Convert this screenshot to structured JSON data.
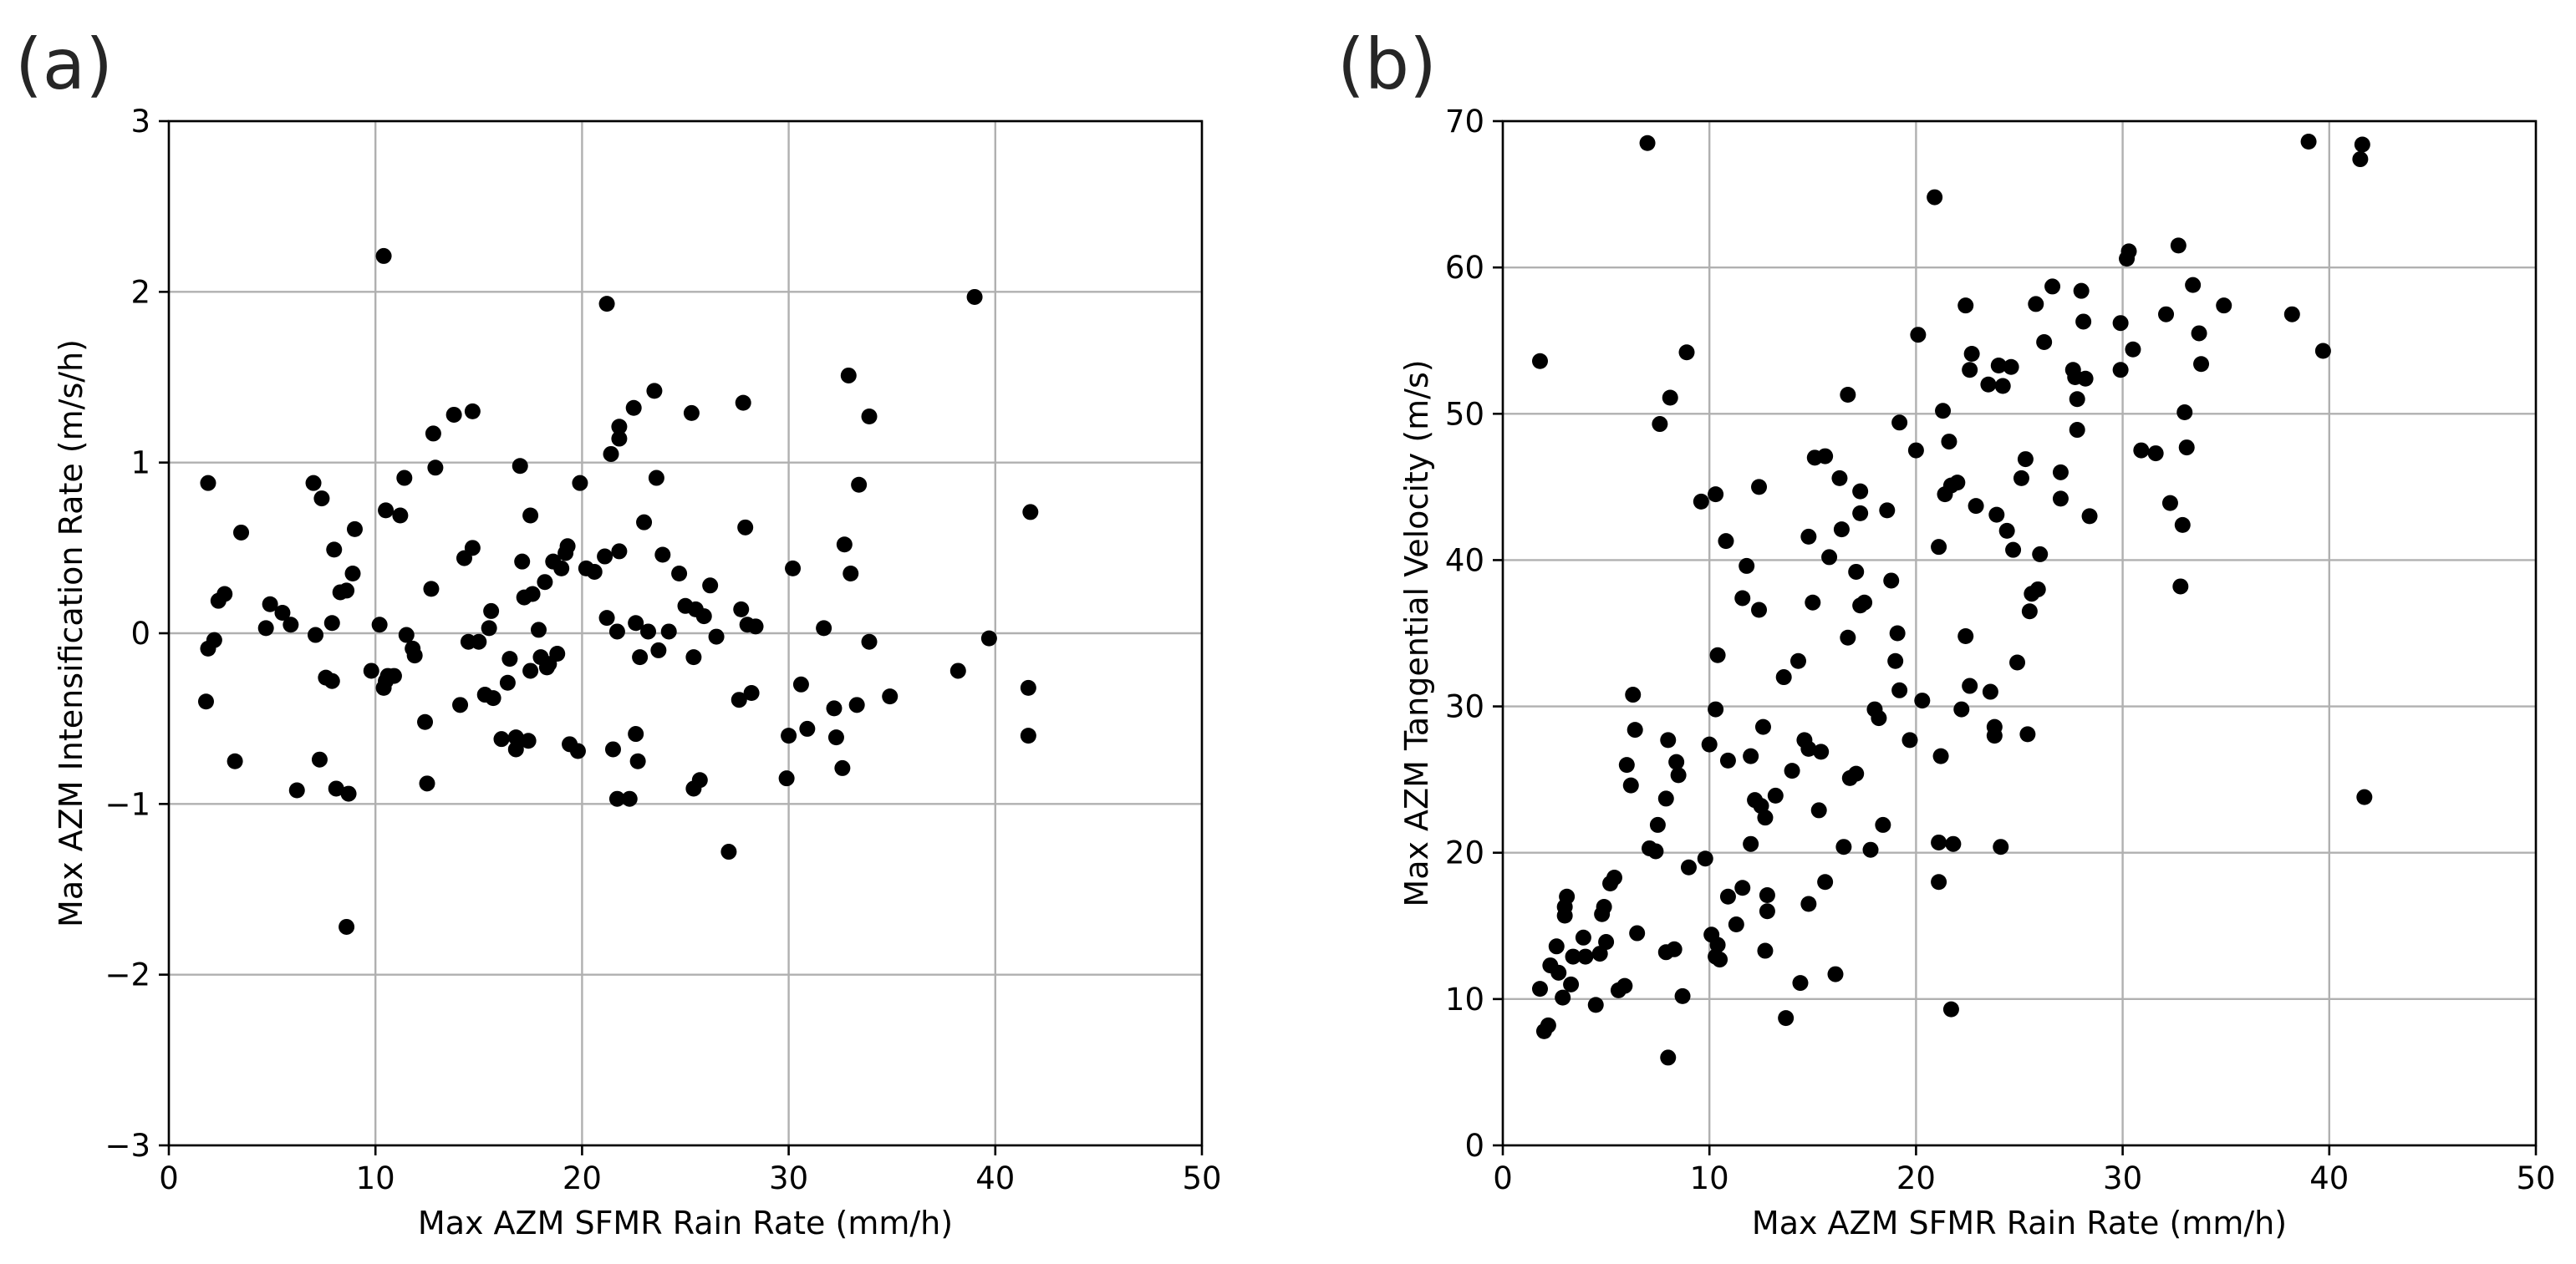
{
  "chart_data": [
    {
      "panel": "(a)",
      "type": "scatter",
      "title": "",
      "xlabel": "Max AZM SFMR Rain Rate (mm/h)",
      "ylabel": "Max AZM Intensification Rate (m/s/h)",
      "xlim": [
        0,
        50
      ],
      "ylim": [
        -3,
        3
      ],
      "xticks": [
        0,
        10,
        20,
        30,
        40,
        50
      ],
      "yticks": [
        -3,
        -2,
        -1,
        0,
        1,
        2,
        3
      ],
      "xtick_labels": [
        "0",
        "10",
        "20",
        "30",
        "40",
        "50"
      ],
      "ytick_labels": [
        "−3",
        "−2",
        "−1",
        "0",
        "1",
        "2",
        "3"
      ],
      "grid": true,
      "marker_color": "#000000",
      "points": [
        [
          1.9,
          0.88
        ],
        [
          2.7,
          0.23
        ],
        [
          1.8,
          -0.4
        ],
        [
          1.9,
          -0.09
        ],
        [
          2.2,
          -0.04
        ],
        [
          2.4,
          0.19
        ],
        [
          3.2,
          -0.75
        ],
        [
          3.5,
          0.59
        ],
        [
          4.9,
          0.17
        ],
        [
          4.7,
          0.03
        ],
        [
          5.5,
          0.12
        ],
        [
          5.9,
          0.05
        ],
        [
          6.2,
          -0.92
        ],
        [
          7.0,
          0.88
        ],
        [
          7.4,
          0.79
        ],
        [
          7.1,
          -0.01
        ],
        [
          7.3,
          -0.74
        ],
        [
          7.6,
          -0.26
        ],
        [
          7.9,
          -0.28
        ],
        [
          8.0,
          0.49
        ],
        [
          7.9,
          0.06
        ],
        [
          8.1,
          -0.91
        ],
        [
          8.3,
          0.24
        ],
        [
          8.6,
          0.25
        ],
        [
          8.6,
          -1.72
        ],
        [
          8.7,
          -0.94
        ],
        [
          8.9,
          0.35
        ],
        [
          9.0,
          0.61
        ],
        [
          9.8,
          -0.22
        ],
        [
          10.2,
          0.05
        ],
        [
          10.4,
          2.21
        ],
        [
          10.5,
          -0.28
        ],
        [
          10.6,
          -0.25
        ],
        [
          10.4,
          -0.32
        ],
        [
          10.5,
          0.72
        ],
        [
          10.9,
          -0.25
        ],
        [
          11.2,
          0.69
        ],
        [
          11.4,
          0.91
        ],
        [
          11.5,
          -0.01
        ],
        [
          11.8,
          -0.09
        ],
        [
          11.9,
          -0.13
        ],
        [
          12.4,
          -0.52
        ],
        [
          12.5,
          -0.88
        ],
        [
          12.7,
          0.26
        ],
        [
          12.8,
          1.17
        ],
        [
          12.9,
          0.97
        ],
        [
          13.8,
          1.28
        ],
        [
          14.1,
          -0.42
        ],
        [
          14.3,
          0.44
        ],
        [
          14.5,
          -0.05
        ],
        [
          14.7,
          0.5
        ],
        [
          14.7,
          1.3
        ],
        [
          15.0,
          -0.05
        ],
        [
          15.3,
          -0.36
        ],
        [
          15.5,
          0.03
        ],
        [
          15.6,
          0.13
        ],
        [
          15.7,
          -0.38
        ],
        [
          16.1,
          -0.62
        ],
        [
          16.4,
          -0.29
        ],
        [
          16.5,
          -0.15
        ],
        [
          16.8,
          -0.61
        ],
        [
          16.8,
          -0.68
        ],
        [
          17.0,
          0.98
        ],
        [
          17.1,
          0.42
        ],
        [
          17.2,
          0.21
        ],
        [
          17.4,
          -0.63
        ],
        [
          17.5,
          0.69
        ],
        [
          17.5,
          -0.22
        ],
        [
          17.6,
          0.23
        ],
        [
          17.9,
          0.02
        ],
        [
          18.0,
          -0.14
        ],
        [
          18.2,
          0.3
        ],
        [
          18.3,
          -0.2
        ],
        [
          18.4,
          -0.18
        ],
        [
          18.6,
          0.42
        ],
        [
          18.8,
          -0.12
        ],
        [
          19.0,
          0.38
        ],
        [
          19.2,
          0.47
        ],
        [
          19.3,
          0.51
        ],
        [
          19.4,
          -0.65
        ],
        [
          19.8,
          -0.69
        ],
        [
          19.9,
          0.88
        ],
        [
          20.2,
          0.38
        ],
        [
          20.6,
          0.36
        ],
        [
          21.1,
          0.45
        ],
        [
          21.2,
          1.93
        ],
        [
          21.2,
          0.09
        ],
        [
          21.4,
          1.05
        ],
        [
          21.5,
          -0.68
        ],
        [
          21.7,
          -0.97
        ],
        [
          21.7,
          0.01
        ],
        [
          21.8,
          1.14
        ],
        [
          21.8,
          1.21
        ],
        [
          21.8,
          0.48
        ],
        [
          22.3,
          -0.97
        ],
        [
          22.5,
          1.32
        ],
        [
          22.6,
          0.06
        ],
        [
          22.6,
          -0.59
        ],
        [
          22.7,
          -0.75
        ],
        [
          22.8,
          -0.14
        ],
        [
          23.0,
          0.65
        ],
        [
          23.2,
          0.01
        ],
        [
          23.5,
          1.42
        ],
        [
          23.6,
          0.91
        ],
        [
          23.7,
          -0.1
        ],
        [
          23.9,
          0.46
        ],
        [
          24.2,
          0.01
        ],
        [
          24.7,
          0.35
        ],
        [
          25.0,
          0.16
        ],
        [
          25.3,
          1.29
        ],
        [
          25.4,
          -0.91
        ],
        [
          25.4,
          -0.14
        ],
        [
          25.5,
          0.14
        ],
        [
          25.7,
          -0.86
        ],
        [
          25.9,
          0.1
        ],
        [
          26.2,
          0.28
        ],
        [
          26.5,
          -0.02
        ],
        [
          27.1,
          -1.28
        ],
        [
          27.7,
          0.14
        ],
        [
          27.8,
          1.35
        ],
        [
          27.9,
          0.62
        ],
        [
          28.0,
          0.05
        ],
        [
          28.2,
          -0.35
        ],
        [
          28.4,
          0.04
        ],
        [
          27.6,
          -0.39
        ],
        [
          30.0,
          -0.6
        ],
        [
          30.2,
          0.38
        ],
        [
          29.9,
          -0.85
        ],
        [
          30.6,
          -0.3
        ],
        [
          30.9,
          -0.56
        ],
        [
          31.7,
          0.03
        ],
        [
          32.2,
          -0.44
        ],
        [
          32.3,
          -0.61
        ],
        [
          32.6,
          -0.79
        ],
        [
          32.7,
          0.52
        ],
        [
          32.9,
          1.51
        ],
        [
          33.0,
          0.35
        ],
        [
          33.3,
          -0.42
        ],
        [
          33.4,
          0.87
        ],
        [
          33.9,
          -0.05
        ],
        [
          33.9,
          1.27
        ],
        [
          34.9,
          -0.37
        ],
        [
          38.2,
          -0.22
        ],
        [
          39.0,
          1.97
        ],
        [
          39.7,
          -0.03
        ],
        [
          41.6,
          -0.32
        ],
        [
          41.7,
          0.71
        ],
        [
          41.6,
          -0.6
        ]
      ]
    },
    {
      "panel": "(b)",
      "type": "scatter",
      "title": "",
      "xlabel": "Max AZM SFMR Rain Rate (mm/h)",
      "ylabel": "Max AZM Tangential Velocity (m/s)",
      "xlim": [
        0,
        50
      ],
      "ylim": [
        0,
        70
      ],
      "xticks": [
        0,
        10,
        20,
        30,
        40,
        50
      ],
      "yticks": [
        0,
        10,
        20,
        30,
        40,
        50,
        60,
        70
      ],
      "xtick_labels": [
        "0",
        "10",
        "20",
        "30",
        "40",
        "50"
      ],
      "ytick_labels": [
        "0",
        "10",
        "20",
        "30",
        "40",
        "50",
        "60",
        "70"
      ],
      "grid": true,
      "marker_color": "#000000",
      "points": [
        [
          1.8,
          53.6
        ],
        [
          1.8,
          10.7
        ],
        [
          2.0,
          7.8
        ],
        [
          2.2,
          8.2
        ],
        [
          2.3,
          12.3
        ],
        [
          2.6,
          13.6
        ],
        [
          2.7,
          11.8
        ],
        [
          2.9,
          10.1
        ],
        [
          3.0,
          15.7
        ],
        [
          3.0,
          16.3
        ],
        [
          3.1,
          17.0
        ],
        [
          3.3,
          11.0
        ],
        [
          3.4,
          12.9
        ],
        [
          3.9,
          14.2
        ],
        [
          4.0,
          12.9
        ],
        [
          4.5,
          9.6
        ],
        [
          4.7,
          13.1
        ],
        [
          4.8,
          15.8
        ],
        [
          4.9,
          16.3
        ],
        [
          5.0,
          13.9
        ],
        [
          5.2,
          17.9
        ],
        [
          5.4,
          18.3
        ],
        [
          5.6,
          10.6
        ],
        [
          5.9,
          10.9
        ],
        [
          6.0,
          26.0
        ],
        [
          6.2,
          24.6
        ],
        [
          6.3,
          30.8
        ],
        [
          6.4,
          28.4
        ],
        [
          6.5,
          14.5
        ],
        [
          7.0,
          68.5
        ],
        [
          7.1,
          20.3
        ],
        [
          7.4,
          20.1
        ],
        [
          7.5,
          21.9
        ],
        [
          7.6,
          49.3
        ],
        [
          7.9,
          13.2
        ],
        [
          7.9,
          23.7
        ],
        [
          8.0,
          27.7
        ],
        [
          8.0,
          6.0
        ],
        [
          8.1,
          51.1
        ],
        [
          8.3,
          13.4
        ],
        [
          8.4,
          26.2
        ],
        [
          8.5,
          25.3
        ],
        [
          8.7,
          10.2
        ],
        [
          8.9,
          54.2
        ],
        [
          9.0,
          19.0
        ],
        [
          9.6,
          44.0
        ],
        [
          9.8,
          19.6
        ],
        [
          10.0,
          27.4
        ],
        [
          10.1,
          14.4
        ],
        [
          10.3,
          12.9
        ],
        [
          10.3,
          44.5
        ],
        [
          10.3,
          29.8
        ],
        [
          10.4,
          33.5
        ],
        [
          10.4,
          13.7
        ],
        [
          10.5,
          12.7
        ],
        [
          10.8,
          41.3
        ],
        [
          10.9,
          17.0
        ],
        [
          10.9,
          26.3
        ],
        [
          11.3,
          15.1
        ],
        [
          11.6,
          17.6
        ],
        [
          11.6,
          37.4
        ],
        [
          11.8,
          39.6
        ],
        [
          12.0,
          20.6
        ],
        [
          12.0,
          26.6
        ],
        [
          12.2,
          23.6
        ],
        [
          12.4,
          45.0
        ],
        [
          12.4,
          36.6
        ],
        [
          12.5,
          23.2
        ],
        [
          12.6,
          28.6
        ],
        [
          12.7,
          22.4
        ],
        [
          12.7,
          13.3
        ],
        [
          12.8,
          17.1
        ],
        [
          12.8,
          16.0
        ],
        [
          13.2,
          23.9
        ],
        [
          13.6,
          32.0
        ],
        [
          13.7,
          8.7
        ],
        [
          14.0,
          25.6
        ],
        [
          14.3,
          33.1
        ],
        [
          14.4,
          11.1
        ],
        [
          14.6,
          27.7
        ],
        [
          14.8,
          41.6
        ],
        [
          14.8,
          16.5
        ],
        [
          14.8,
          27.1
        ],
        [
          15.0,
          37.1
        ],
        [
          15.1,
          47.0
        ],
        [
          15.3,
          22.9
        ],
        [
          15.4,
          26.9
        ],
        [
          15.6,
          18.0
        ],
        [
          15.6,
          47.1
        ],
        [
          15.8,
          40.2
        ],
        [
          16.1,
          11.7
        ],
        [
          16.3,
          45.6
        ],
        [
          16.4,
          42.1
        ],
        [
          16.5,
          20.4
        ],
        [
          16.7,
          51.3
        ],
        [
          16.7,
          34.7
        ],
        [
          16.8,
          25.1
        ],
        [
          17.1,
          25.4
        ],
        [
          17.1,
          39.2
        ],
        [
          17.3,
          43.2
        ],
        [
          17.3,
          44.7
        ],
        [
          17.3,
          36.9
        ],
        [
          17.5,
          37.1
        ],
        [
          17.8,
          20.2
        ],
        [
          18.0,
          29.8
        ],
        [
          18.2,
          29.2
        ],
        [
          18.4,
          21.9
        ],
        [
          18.6,
          43.4
        ],
        [
          18.8,
          38.6
        ],
        [
          19.0,
          33.1
        ],
        [
          19.1,
          35.0
        ],
        [
          19.2,
          49.4
        ],
        [
          19.2,
          31.1
        ],
        [
          19.7,
          27.7
        ],
        [
          20.0,
          47.5
        ],
        [
          20.1,
          55.4
        ],
        [
          20.3,
          30.4
        ],
        [
          20.9,
          64.8
        ],
        [
          21.1,
          40.9
        ],
        [
          21.1,
          18.0
        ],
        [
          21.1,
          20.7
        ],
        [
          21.2,
          26.6
        ],
        [
          21.3,
          50.2
        ],
        [
          21.4,
          44.5
        ],
        [
          21.6,
          48.1
        ],
        [
          21.7,
          9.3
        ],
        [
          21.7,
          45.1
        ],
        [
          21.8,
          20.6
        ],
        [
          22.0,
          45.3
        ],
        [
          22.2,
          29.8
        ],
        [
          22.4,
          34.8
        ],
        [
          22.4,
          57.4
        ],
        [
          22.6,
          31.4
        ],
        [
          22.6,
          53.0
        ],
        [
          22.7,
          54.1
        ],
        [
          22.9,
          43.7
        ],
        [
          23.5,
          52.0
        ],
        [
          23.6,
          31.0
        ],
        [
          23.8,
          28.0
        ],
        [
          23.8,
          28.6
        ],
        [
          23.9,
          43.1
        ],
        [
          24.0,
          53.3
        ],
        [
          24.1,
          20.4
        ],
        [
          24.2,
          51.9
        ],
        [
          24.4,
          42.0
        ],
        [
          24.6,
          53.2
        ],
        [
          24.7,
          40.7
        ],
        [
          24.9,
          33.0
        ],
        [
          25.1,
          45.6
        ],
        [
          25.3,
          46.9
        ],
        [
          25.4,
          28.1
        ],
        [
          25.5,
          36.5
        ],
        [
          25.6,
          37.7
        ],
        [
          25.8,
          57.5
        ],
        [
          25.9,
          38.0
        ],
        [
          26.0,
          40.4
        ],
        [
          26.2,
          54.9
        ],
        [
          26.6,
          58.7
        ],
        [
          27.0,
          46.0
        ],
        [
          27.0,
          44.2
        ],
        [
          27.6,
          53.0
        ],
        [
          27.7,
          52.5
        ],
        [
          27.8,
          48.9
        ],
        [
          27.8,
          51.0
        ],
        [
          28.0,
          58.4
        ],
        [
          28.1,
          56.3
        ],
        [
          28.2,
          52.4
        ],
        [
          28.4,
          43.0
        ],
        [
          29.9,
          56.2
        ],
        [
          29.9,
          53.0
        ],
        [
          30.2,
          60.6
        ],
        [
          30.3,
          61.1
        ],
        [
          30.5,
          54.4
        ],
        [
          30.9,
          47.5
        ],
        [
          31.6,
          47.3
        ],
        [
          32.1,
          56.8
        ],
        [
          32.3,
          43.9
        ],
        [
          32.7,
          61.5
        ],
        [
          32.8,
          38.2
        ],
        [
          32.9,
          42.4
        ],
        [
          33.0,
          50.1
        ],
        [
          33.1,
          47.7
        ],
        [
          33.4,
          58.8
        ],
        [
          33.7,
          55.5
        ],
        [
          33.8,
          53.4
        ],
        [
          34.9,
          57.4
        ],
        [
          38.2,
          56.8
        ],
        [
          39.0,
          68.6
        ],
        [
          39.7,
          54.3
        ],
        [
          41.5,
          67.4
        ],
        [
          41.6,
          68.4
        ],
        [
          41.7,
          23.8
        ]
      ]
    }
  ]
}
